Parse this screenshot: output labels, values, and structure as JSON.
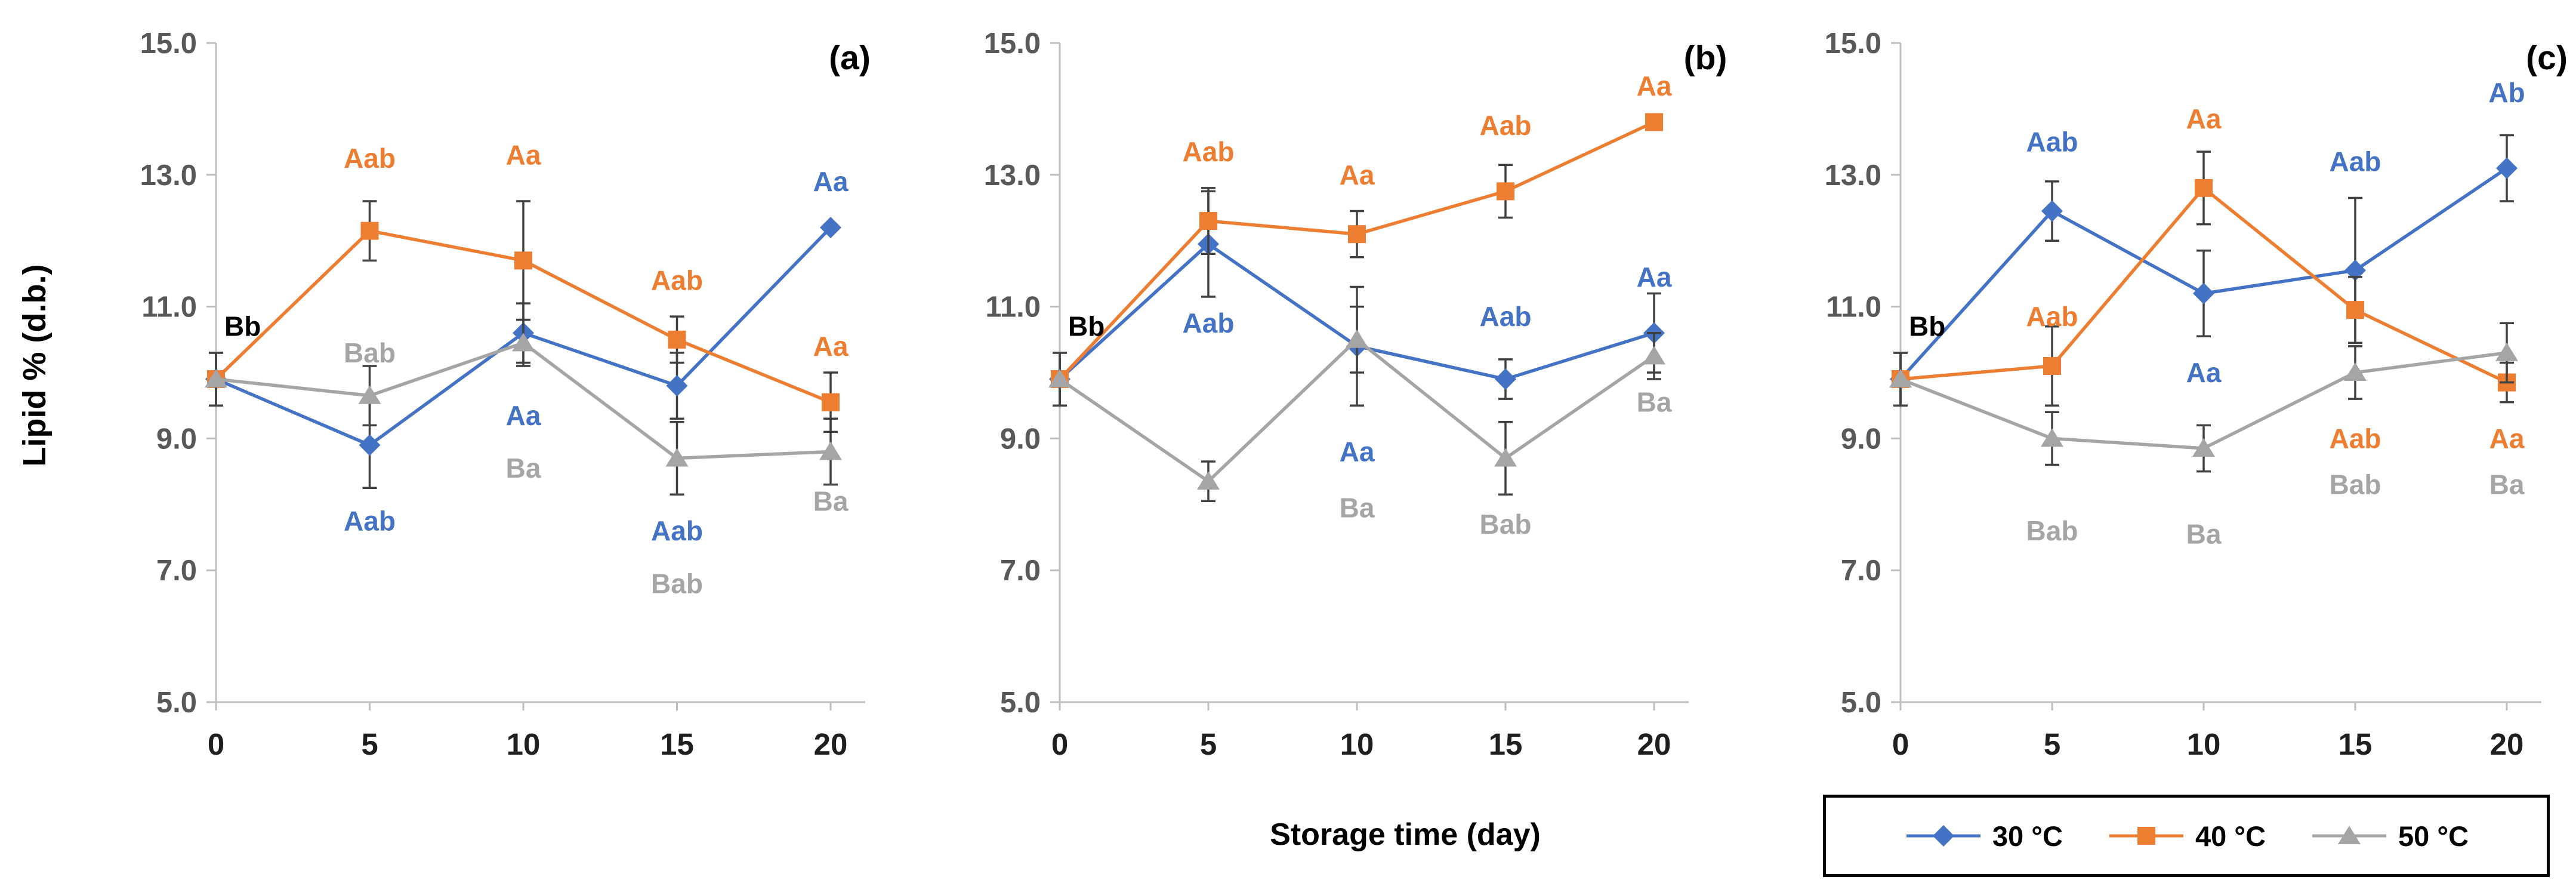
{
  "figure": {
    "background": "#FFFFFF",
    "colors": {
      "series_30C": "#4472C4",
      "series_40C": "#ED7D31",
      "series_50C": "#A5A5A5",
      "error_bar": "#404040",
      "axis_line": "#BFBFBF",
      "ytick_text": "#595959",
      "xtick_text": "#1F1F1F",
      "sig_label_day0": "#000000"
    }
  },
  "legend": {
    "items": [
      {
        "label": "30 °C",
        "marker": "diamond",
        "color": "#4472C4"
      },
      {
        "label": "40 °C",
        "marker": "square",
        "color": "#ED7D31"
      },
      {
        "label": "50 °C",
        "marker": "triangle",
        "color": "#A5A5A5"
      }
    ]
  },
  "chart_data": {
    "type": "line",
    "x": [
      0,
      5,
      10,
      15,
      20
    ],
    "xlabel": "Storage time (day)",
    "ylabel": "Lipid % (d.b.)",
    "ylim": [
      5.0,
      15.0
    ],
    "yticks": [
      5.0,
      7.0,
      9.0,
      11.0,
      13.0,
      15.0
    ],
    "xticks": [
      0,
      5,
      10,
      15,
      20
    ],
    "grid": false,
    "error_bars": true,
    "legend_position": "bottom-right, outside plot, boxed",
    "panels": [
      {
        "label": "(a)",
        "series": [
          {
            "name": "30 °C",
            "color": "#4472C4",
            "marker": "diamond",
            "values": [
              9.9,
              8.9,
              10.6,
              9.8,
              12.2
            ],
            "errors": [
              0.4,
              0.65,
              0.45,
              0.5,
              0
            ]
          },
          {
            "name": "40 °C",
            "color": "#ED7D31",
            "marker": "square",
            "values": [
              9.9,
              12.15,
              11.7,
              10.5,
              9.55
            ],
            "errors": [
              0.4,
              0.45,
              0.9,
              0.35,
              0.45
            ]
          },
          {
            "name": "50 °C",
            "color": "#A5A5A5",
            "marker": "triangle",
            "values": [
              9.9,
              9.65,
              10.45,
              8.7,
              8.8
            ],
            "errors": [
              0.4,
              0.45,
              0.35,
              0.55,
              0.5
            ]
          }
        ],
        "sig_labels": [
          {
            "day": 0,
            "text": "Bb",
            "color": "#000000",
            "y": 10.7,
            "anchor": "start",
            "dx": 14
          },
          {
            "day": 5,
            "text": "Aab",
            "color": "#ED7D31",
            "y": 13.25
          },
          {
            "day": 5,
            "text": "Bab",
            "color": "#A5A5A5",
            "y": 10.3
          },
          {
            "day": 5,
            "text": "Aab",
            "color": "#4472C4",
            "y": 7.75
          },
          {
            "day": 10,
            "text": "Aa",
            "color": "#ED7D31",
            "y": 13.3
          },
          {
            "day": 10,
            "text": "Aa",
            "color": "#4472C4",
            "y": 9.35
          },
          {
            "day": 10,
            "text": "Ba",
            "color": "#A5A5A5",
            "y": 8.55
          },
          {
            "day": 15,
            "text": "Aab",
            "color": "#ED7D31",
            "y": 11.4
          },
          {
            "day": 15,
            "text": "Aab",
            "color": "#4472C4",
            "y": 7.6
          },
          {
            "day": 15,
            "text": "Bab",
            "color": "#A5A5A5",
            "y": 6.8
          },
          {
            "day": 20,
            "text": "Aa",
            "color": "#4472C4",
            "y": 12.9
          },
          {
            "day": 20,
            "text": "Aa",
            "color": "#ED7D31",
            "y": 10.4
          },
          {
            "day": 20,
            "text": "Ba",
            "color": "#A5A5A5",
            "y": 8.05
          }
        ]
      },
      {
        "label": "(b)",
        "series": [
          {
            "name": "30 °C",
            "color": "#4472C4",
            "marker": "diamond",
            "values": [
              9.9,
              11.95,
              10.4,
              9.9,
              10.6
            ],
            "errors": [
              0.4,
              0.8,
              0.9,
              0.3,
              0.6
            ]
          },
          {
            "name": "40 °C",
            "color": "#ED7D31",
            "marker": "square",
            "values": [
              9.9,
              12.3,
              12.1,
              12.75,
              13.8
            ],
            "errors": [
              0.4,
              0.5,
              0.35,
              0.4,
              0
            ]
          },
          {
            "name": "50 °C",
            "color": "#A5A5A5",
            "marker": "triangle",
            "values": [
              9.9,
              8.35,
              10.5,
              8.7,
              10.25
            ],
            "errors": [
              0.4,
              0.3,
              0.5,
              0.55,
              0.35
            ]
          }
        ],
        "sig_labels": [
          {
            "day": 0,
            "text": "Bb",
            "color": "#000000",
            "y": 10.7,
            "anchor": "start",
            "dx": 14
          },
          {
            "day": 5,
            "text": "Aab",
            "color": "#ED7D31",
            "y": 13.35
          },
          {
            "day": 5,
            "text": "Aab",
            "color": "#4472C4",
            "y": 10.75
          },
          {
            "day": 10,
            "text": "Aa",
            "color": "#ED7D31",
            "y": 13.0
          },
          {
            "day": 10,
            "text": "Aa",
            "color": "#4472C4",
            "y": 8.8
          },
          {
            "day": 10,
            "text": "Ba",
            "color": "#A5A5A5",
            "y": 7.95
          },
          {
            "day": 15,
            "text": "Aab",
            "color": "#ED7D31",
            "y": 13.75
          },
          {
            "day": 15,
            "text": "Aab",
            "color": "#4472C4",
            "y": 10.85
          },
          {
            "day": 15,
            "text": "Bab",
            "color": "#A5A5A5",
            "y": 7.7
          },
          {
            "day": 20,
            "text": "Aa",
            "color": "#ED7D31",
            "y": 14.35
          },
          {
            "day": 20,
            "text": "Aa",
            "color": "#4472C4",
            "y": 11.45
          },
          {
            "day": 20,
            "text": "Ba",
            "color": "#A5A5A5",
            "y": 9.55
          }
        ]
      },
      {
        "label": "(c)",
        "series": [
          {
            "name": "30 °C",
            "color": "#4472C4",
            "marker": "diamond",
            "values": [
              9.9,
              12.45,
              11.2,
              11.55,
              13.1
            ],
            "errors": [
              0.4,
              0.45,
              0.65,
              1.1,
              0.5
            ]
          },
          {
            "name": "40 °C",
            "color": "#ED7D31",
            "marker": "square",
            "values": [
              9.9,
              10.1,
              12.8,
              10.95,
              9.85
            ],
            "errors": [
              0.4,
              0.6,
              0.55,
              0.5,
              0.3
            ]
          },
          {
            "name": "50 °C",
            "color": "#A5A5A5",
            "marker": "triangle",
            "values": [
              9.9,
              9.0,
              8.85,
              10.0,
              10.3
            ],
            "errors": [
              0.4,
              0.4,
              0.35,
              0.4,
              0.45
            ]
          }
        ],
        "sig_labels": [
          {
            "day": 0,
            "text": "Bb",
            "color": "#000000",
            "y": 10.7,
            "anchor": "start",
            "dx": 14
          },
          {
            "day": 5,
            "text": "Aab",
            "color": "#4472C4",
            "y": 13.5
          },
          {
            "day": 5,
            "text": "Aab",
            "color": "#ED7D31",
            "y": 10.85
          },
          {
            "day": 5,
            "text": "Bab",
            "color": "#A5A5A5",
            "y": 7.6
          },
          {
            "day": 10,
            "text": "Aa",
            "color": "#ED7D31",
            "y": 13.85
          },
          {
            "day": 10,
            "text": "Aa",
            "color": "#4472C4",
            "y": 10.0
          },
          {
            "day": 10,
            "text": "Ba",
            "color": "#A5A5A5",
            "y": 7.55
          },
          {
            "day": 15,
            "text": "Aab",
            "color": "#4472C4",
            "y": 13.2
          },
          {
            "day": 15,
            "text": "Aab",
            "color": "#ED7D31",
            "y": 9.0
          },
          {
            "day": 15,
            "text": "Bab",
            "color": "#A5A5A5",
            "y": 8.3
          },
          {
            "day": 20,
            "text": "Ab",
            "color": "#4472C4",
            "y": 14.25
          },
          {
            "day": 20,
            "text": "Aa",
            "color": "#ED7D31",
            "y": 9.0
          },
          {
            "day": 20,
            "text": "Ba",
            "color": "#A5A5A5",
            "y": 8.3
          }
        ]
      }
    ]
  }
}
